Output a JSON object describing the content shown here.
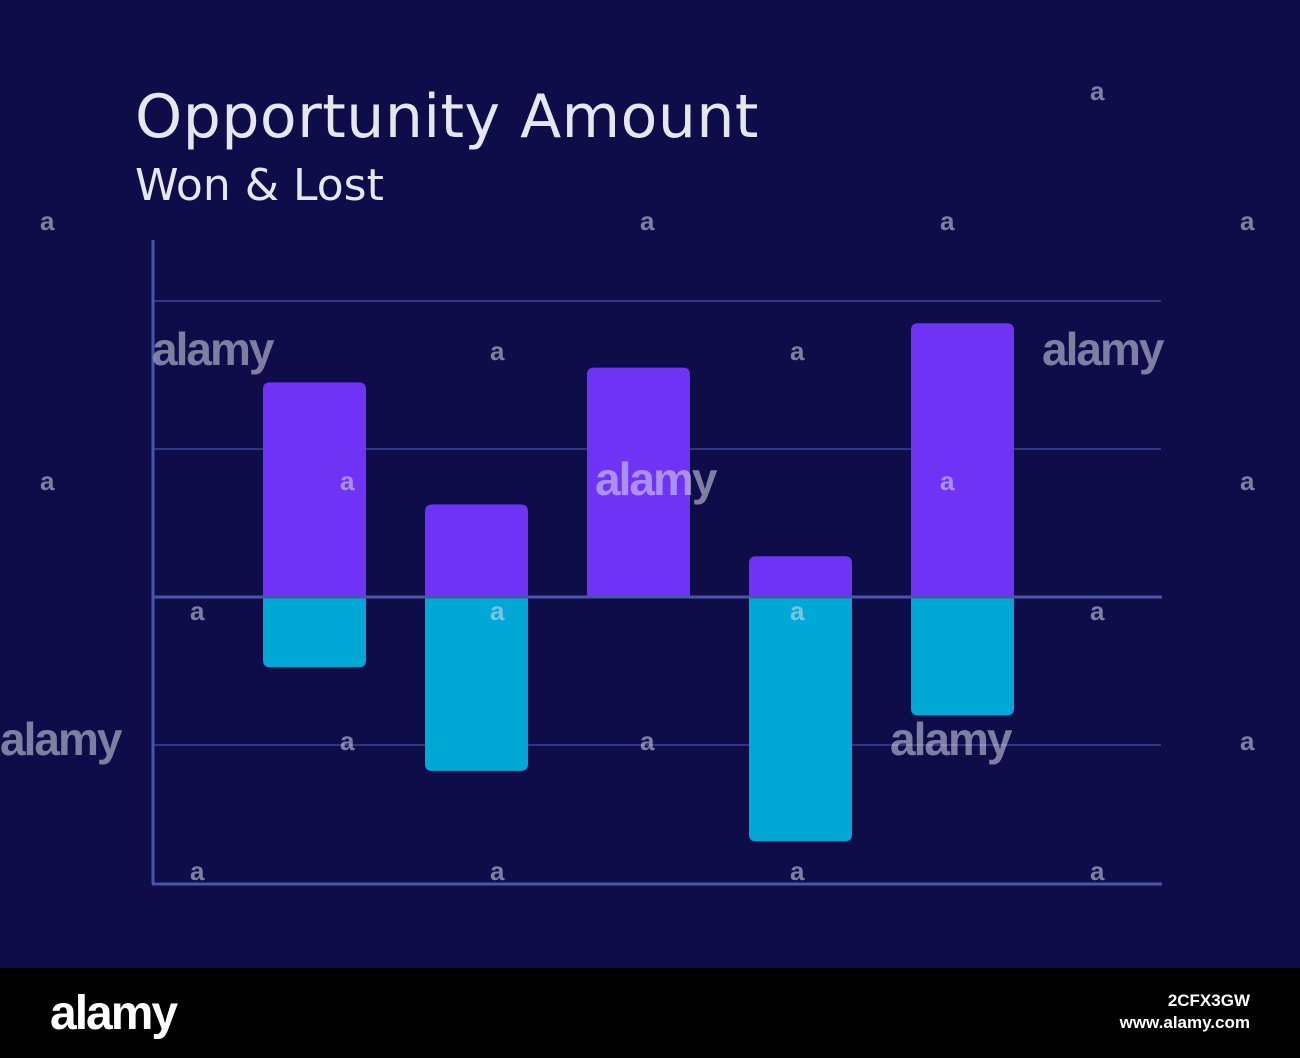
{
  "chart_data": {
    "type": "bar",
    "title": "Opportunity Amount",
    "subtitle": "Won & Lost",
    "categories": [
      "",
      "",
      "",
      "",
      ""
    ],
    "series": [
      {
        "name": "Won",
        "values": [
          2.9,
          1.25,
          3.1,
          0.55,
          3.7
        ],
        "color": "#6f33f5"
      },
      {
        "name": "Lost",
        "values": [
          -0.95,
          -2.35,
          0,
          -3.3,
          -1.6
        ],
        "color": "#00a8d6"
      }
    ],
    "ylim": [
      -3.9,
      4.0
    ],
    "gridlines": [
      -2,
      0,
      2,
      4
    ],
    "grid": true,
    "legend": "none",
    "xlabel": "",
    "ylabel": ""
  },
  "watermark": {
    "brand": "alamy",
    "mark": "a",
    "image_id": "2CFX3GW",
    "site": "www.alamy.com"
  },
  "colors": {
    "background": "#0e0d4a",
    "axis": "#4a55a8",
    "gridline": "#3a4596",
    "footer": "#000000"
  }
}
